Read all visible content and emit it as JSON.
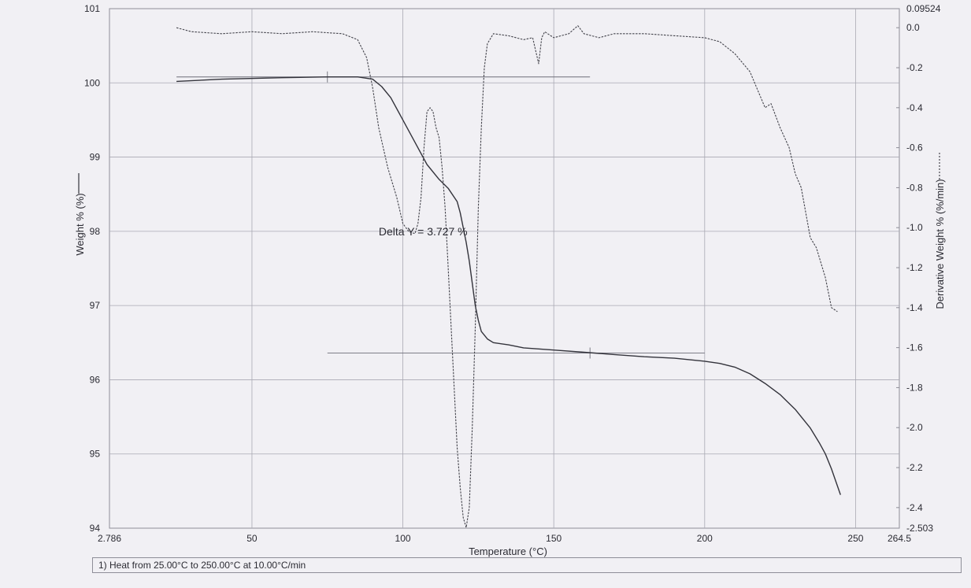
{
  "chart_data": {
    "type": "line",
    "xlabel": "Temperature (°C)",
    "ylabel": "Weight % (%)",
    "y2label": "Derivative Weight % (%/min)",
    "xlim": [
      2.786,
      264.5
    ],
    "ylim": [
      94,
      101
    ],
    "y2lim": [
      -2.503,
      0.09524
    ],
    "x_ticks": [
      "2.786",
      "50",
      "100",
      "150",
      "200",
      "250",
      "264.5"
    ],
    "x_tick_values": [
      2.786,
      50,
      100,
      150,
      200,
      250,
      264.5
    ],
    "y_ticks": [
      "94",
      "95",
      "96",
      "97",
      "98",
      "99",
      "100",
      "101"
    ],
    "y_tick_values": [
      94,
      95,
      96,
      97,
      98,
      99,
      100,
      101
    ],
    "y2_ticks": [
      "-2.503",
      "-2.4",
      "-2.2",
      "-2.0",
      "-1.8",
      "-1.6",
      "-1.4",
      "-1.2",
      "-1.0",
      "-0.8",
      "-0.6",
      "-0.4",
      "-0.2",
      "0.0",
      "0.09524"
    ],
    "y2_tick_values": [
      -2.503,
      -2.4,
      -2.2,
      -2.0,
      -1.8,
      -1.6,
      -1.4,
      -1.2,
      -1.0,
      -0.8,
      -0.6,
      -0.4,
      -0.2,
      0.0,
      0.09524
    ],
    "grid": true,
    "series": [
      {
        "axis": "left",
        "style": "solid",
        "color": "#33333b",
        "x": [
          25,
          40,
          60,
          75,
          85,
          90,
          93,
          96,
          100,
          104,
          108,
          112,
          115,
          118,
          119,
          120,
          121,
          122,
          123,
          124,
          125,
          126,
          128,
          130,
          135,
          140,
          150,
          160,
          170,
          180,
          190,
          200,
          205,
          210,
          215,
          220,
          225,
          230,
          235,
          238,
          240,
          242,
          245
        ],
        "y": [
          100.02,
          100.05,
          100.07,
          100.08,
          100.08,
          100.05,
          99.95,
          99.8,
          99.5,
          99.2,
          98.9,
          98.7,
          98.58,
          98.4,
          98.25,
          98.05,
          97.85,
          97.6,
          97.3,
          97.0,
          96.8,
          96.65,
          96.55,
          96.5,
          96.47,
          96.43,
          96.4,
          96.37,
          96.34,
          96.31,
          96.29,
          96.25,
          96.22,
          96.17,
          96.08,
          95.95,
          95.8,
          95.6,
          95.35,
          95.15,
          95.0,
          94.8,
          94.45
        ]
      },
      {
        "axis": "right",
        "style": "dashed",
        "color": "#44444c",
        "x": [
          25,
          30,
          40,
          50,
          60,
          70,
          80,
          85,
          88,
          90,
          92,
          95,
          98,
          100,
          102,
          104,
          105,
          106,
          107,
          108,
          109,
          110,
          111,
          112,
          113,
          114,
          115,
          116,
          117,
          118,
          119,
          120,
          121,
          122,
          123,
          124,
          125,
          126,
          127,
          128,
          130,
          135,
          140,
          143,
          145,
          146,
          147,
          150,
          155,
          158,
          160,
          165,
          170,
          180,
          190,
          200,
          205,
          210,
          215,
          220,
          222,
          225,
          228,
          230,
          232,
          235,
          237,
          240,
          242,
          244
        ],
        "y": [
          0.0,
          -0.02,
          -0.03,
          -0.02,
          -0.03,
          -0.02,
          -0.03,
          -0.06,
          -0.15,
          -0.3,
          -0.5,
          -0.7,
          -0.85,
          -0.98,
          -1.02,
          -1.03,
          -0.98,
          -0.85,
          -0.6,
          -0.42,
          -0.4,
          -0.42,
          -0.5,
          -0.55,
          -0.7,
          -0.9,
          -1.2,
          -1.5,
          -1.8,
          -2.1,
          -2.3,
          -2.45,
          -2.5,
          -2.4,
          -2.0,
          -1.5,
          -0.9,
          -0.5,
          -0.2,
          -0.08,
          -0.03,
          -0.04,
          -0.06,
          -0.05,
          -0.18,
          -0.05,
          -0.02,
          -0.05,
          -0.03,
          0.01,
          -0.03,
          -0.05,
          -0.03,
          -0.03,
          -0.04,
          -0.05,
          -0.07,
          -0.13,
          -0.22,
          -0.4,
          -0.38,
          -0.5,
          -0.6,
          -0.73,
          -0.8,
          -1.05,
          -1.1,
          -1.25,
          -1.4,
          -1.42
        ]
      }
    ],
    "annotations": [
      {
        "text": "Delta Y = 3.727 %",
        "x": 92,
        "y": 98.0
      },
      {
        "kind": "ref-line",
        "y": 100.08,
        "x_from": 25,
        "x_to": 162,
        "axis": "left"
      },
      {
        "kind": "ref-line",
        "y": 96.36,
        "x_from": 75,
        "x_to": 200,
        "axis": "left"
      }
    ],
    "footer": "1)  Heat from 25.00°C to 250.00°C at 10.00°C/min"
  }
}
